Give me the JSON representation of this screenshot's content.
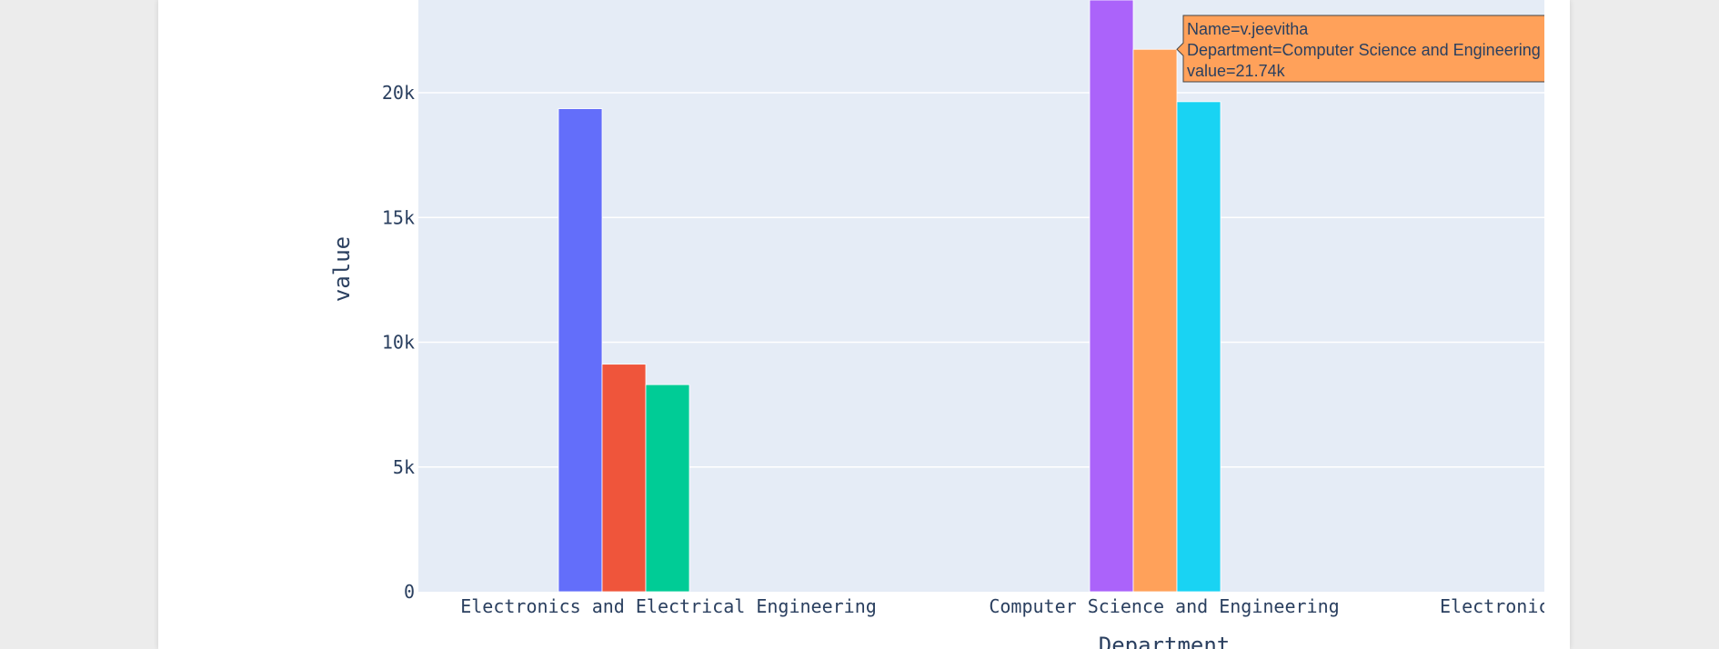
{
  "chart_data": {
    "type": "bar",
    "xlabel": "Department",
    "ylabel": "value",
    "ylim": [
      0,
      24000
    ],
    "yticks": [
      0,
      5000,
      10000,
      15000,
      20000
    ],
    "ytick_labels": [
      "0",
      "5k",
      "10k",
      "15k",
      "20k"
    ],
    "grid": true,
    "categories": [
      "Electronics and Electrical Engineering",
      "Computer Science and Engineering",
      "Electronic"
    ],
    "bars": [
      {
        "category": 0,
        "value": 19360,
        "color": "#636efa"
      },
      {
        "category": 0,
        "value": 9120,
        "color": "#ef553b"
      },
      {
        "category": 0,
        "value": 8300,
        "color": "#00cc96"
      },
      {
        "category": 1,
        "value": 26000,
        "color": "#ab63fa"
      },
      {
        "category": 1,
        "value": 21740,
        "color": "#ffa15a"
      },
      {
        "category": 1,
        "value": 19640,
        "color": "#19d3f3"
      }
    ],
    "tooltip": {
      "lines": [
        "Name=v.jeevitha",
        "Department=Computer Science and Engineering",
        "value=21.74k"
      ],
      "color": "#ffa15a",
      "bar": 4
    }
  }
}
